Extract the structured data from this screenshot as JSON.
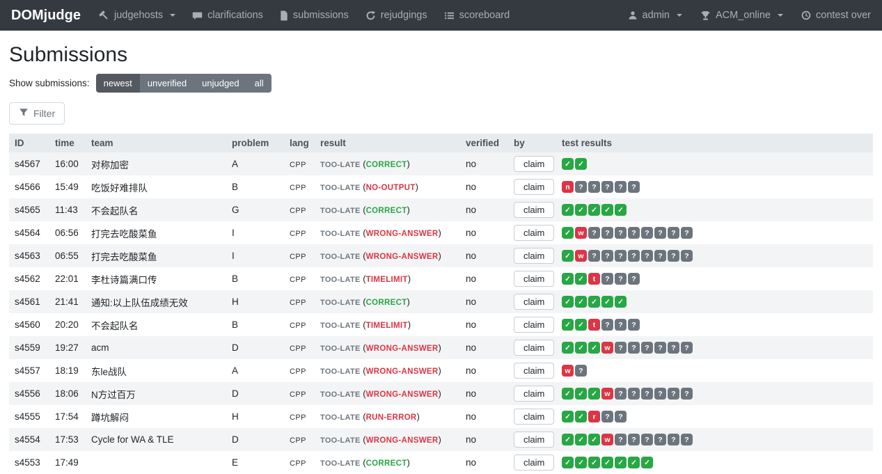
{
  "navbar": {
    "brand": "DOMjudge",
    "items": [
      {
        "label": "judgehosts",
        "icon": "gavel-icon",
        "caret": true
      },
      {
        "label": "clarifications",
        "icon": "comments-icon",
        "caret": false
      },
      {
        "label": "submissions",
        "icon": "file-icon",
        "caret": false
      },
      {
        "label": "rejudgings",
        "icon": "sync-icon",
        "caret": false
      },
      {
        "label": "scoreboard",
        "icon": "list-icon",
        "caret": false
      }
    ],
    "right": [
      {
        "label": "admin",
        "icon": "user-icon",
        "caret": true
      },
      {
        "label": "ACM_online",
        "icon": "trophy-icon",
        "caret": true
      },
      {
        "label": "contest over",
        "icon": "clock-icon",
        "caret": false
      }
    ]
  },
  "page": {
    "title": "Submissions",
    "show_label": "Show submissions:",
    "view_options": [
      "newest",
      "unverified",
      "unjudged",
      "all"
    ],
    "active_view": "newest",
    "filter_label": "Filter"
  },
  "table": {
    "headers": [
      "ID",
      "time",
      "team",
      "problem",
      "lang",
      "result",
      "verified",
      "by",
      "test results"
    ],
    "claim_label": "claim",
    "rows": [
      {
        "id": "s4567",
        "time": "16:00",
        "team": "对称加密",
        "problem": "A",
        "lang": "CPP",
        "result_prefix": "TOO-LATE",
        "verdict": "CORRECT",
        "ok": true,
        "verified": "no",
        "tests": [
          "c",
          "c"
        ]
      },
      {
        "id": "s4566",
        "time": "15:49",
        "team": "吃饭好难排队",
        "problem": "B",
        "lang": "CPP",
        "result_prefix": "TOO-LATE",
        "verdict": "NO-OUTPUT",
        "ok": false,
        "verified": "no",
        "tests": [
          "n",
          "?",
          "?",
          "?",
          "?",
          "?"
        ]
      },
      {
        "id": "s4565",
        "time": "11:43",
        "team": "不会起队名",
        "problem": "G",
        "lang": "CPP",
        "result_prefix": "TOO-LATE",
        "verdict": "CORRECT",
        "ok": true,
        "verified": "no",
        "tests": [
          "c",
          "c",
          "c",
          "c",
          "c"
        ]
      },
      {
        "id": "s4564",
        "time": "06:56",
        "team": "打完去吃酸菜鱼",
        "problem": "I",
        "lang": "CPP",
        "result_prefix": "TOO-LATE",
        "verdict": "WRONG-ANSWER",
        "ok": false,
        "verified": "no",
        "tests": [
          "c",
          "w",
          "?",
          "?",
          "?",
          "?",
          "?",
          "?",
          "?",
          "?"
        ]
      },
      {
        "id": "s4563",
        "time": "06:55",
        "team": "打完去吃酸菜鱼",
        "problem": "I",
        "lang": "CPP",
        "result_prefix": "TOO-LATE",
        "verdict": "WRONG-ANSWER",
        "ok": false,
        "verified": "no",
        "tests": [
          "c",
          "w",
          "?",
          "?",
          "?",
          "?",
          "?",
          "?",
          "?",
          "?"
        ]
      },
      {
        "id": "s4562",
        "time": "22:01",
        "team": "李杜诗篇满口传",
        "problem": "B",
        "lang": "CPP",
        "result_prefix": "TOO-LATE",
        "verdict": "TIMELIMIT",
        "ok": false,
        "verified": "no",
        "tests": [
          "c",
          "c",
          "t",
          "?",
          "?",
          "?"
        ]
      },
      {
        "id": "s4561",
        "time": "21:41",
        "team": "通知:以上队伍成绩无效",
        "problem": "H",
        "lang": "CPP",
        "result_prefix": "TOO-LATE",
        "verdict": "CORRECT",
        "ok": true,
        "verified": "no",
        "tests": [
          "c",
          "c",
          "c",
          "c",
          "c"
        ]
      },
      {
        "id": "s4560",
        "time": "20:20",
        "team": "不会起队名",
        "problem": "B",
        "lang": "CPP",
        "result_prefix": "TOO-LATE",
        "verdict": "TIMELIMIT",
        "ok": false,
        "verified": "no",
        "tests": [
          "c",
          "c",
          "t",
          "?",
          "?",
          "?"
        ]
      },
      {
        "id": "s4559",
        "time": "19:27",
        "team": "acm",
        "problem": "D",
        "lang": "CPP",
        "result_prefix": "TOO-LATE",
        "verdict": "WRONG-ANSWER",
        "ok": false,
        "verified": "no",
        "tests": [
          "c",
          "c",
          "c",
          "w",
          "?",
          "?",
          "?",
          "?",
          "?",
          "?"
        ]
      },
      {
        "id": "s4557",
        "time": "18:19",
        "team": "东le战队",
        "problem": "A",
        "lang": "CPP",
        "result_prefix": "TOO-LATE",
        "verdict": "WRONG-ANSWER",
        "ok": false,
        "verified": "no",
        "tests": [
          "w",
          "?"
        ]
      },
      {
        "id": "s4556",
        "time": "18:06",
        "team": "N方过百万",
        "problem": "D",
        "lang": "CPP",
        "result_prefix": "TOO-LATE",
        "verdict": "WRONG-ANSWER",
        "ok": false,
        "verified": "no",
        "tests": [
          "c",
          "c",
          "c",
          "w",
          "?",
          "?",
          "?",
          "?",
          "?",
          "?"
        ]
      },
      {
        "id": "s4555",
        "time": "17:54",
        "team": "蹲坑解闷",
        "problem": "H",
        "lang": "CPP",
        "result_prefix": "TOO-LATE",
        "verdict": "RUN-ERROR",
        "ok": false,
        "verified": "no",
        "tests": [
          "c",
          "c",
          "r",
          "?",
          "?"
        ]
      },
      {
        "id": "s4554",
        "time": "17:53",
        "team": "Cycle for WA & TLE",
        "problem": "D",
        "lang": "CPP",
        "result_prefix": "TOO-LATE",
        "verdict": "WRONG-ANSWER",
        "ok": false,
        "verified": "no",
        "tests": [
          "c",
          "c",
          "c",
          "w",
          "?",
          "?",
          "?",
          "?",
          "?",
          "?"
        ]
      },
      {
        "id": "s4553",
        "time": "17:49",
        "team": "",
        "problem": "E",
        "lang": "CPP",
        "result_prefix": "TOO-LATE",
        "verdict": "CORRECT",
        "ok": true,
        "verified": "no",
        "tests": [
          "c",
          "c",
          "c",
          "c",
          "c",
          "c",
          "c"
        ]
      }
    ]
  },
  "colors": {
    "navbar_bg": "#343a40",
    "correct": "#28a745",
    "error": "#dc3545",
    "pending": "#6c757d",
    "header_row_bg": "#e8ebee"
  },
  "badge_legend": {
    "c": "✓",
    "n": "n",
    "w": "w",
    "t": "t",
    "r": "r",
    "?": "?"
  }
}
